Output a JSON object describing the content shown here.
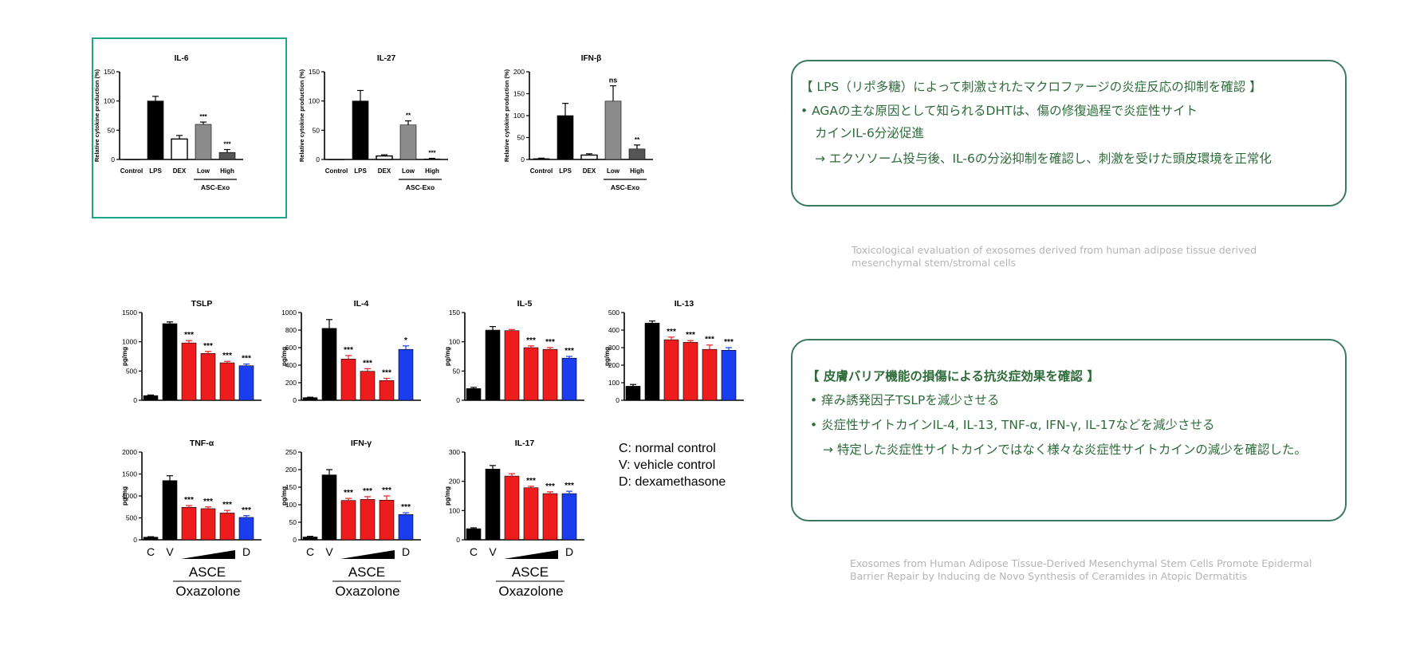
{
  "colors": {
    "black": "#000000",
    "white": "#ffffff",
    "grey": "#8c8c8c",
    "darkgrey": "#555555",
    "red": "#ee1c1c",
    "blue": "#1a3df0",
    "panel_border": "#3b7a5e",
    "panel_text": "#2e6b3a",
    "highlight": "#1ea58a"
  },
  "top_panel": {
    "line1": "【 LPS（リポ多糖）によって刺激されたマクロファージの炎症反応の抑制を確認 】",
    "line2": "•  AGAの主な原因として知られるDHTは、傷の修復過程で炎症性サイト",
    "line3": "カインIL-6分泌促進",
    "line4": "→ エクソソーム投与後、IL-6の分泌抑制を確認し、刺激を受けた頭皮環境を正常化"
  },
  "top_ref": {
    "line1": "Toxicological evaluation of exosomes derived from human adipose tissue derived",
    "line2": "mesenchymal stem/stromal cells"
  },
  "bottom_panel": {
    "line1": "【  皮膚バリア機能の損傷による抗炎症効果を確認 】",
    "line2": "•  痒み誘発因子TSLPを減少させる",
    "line3": "•  炎症性サイトカインIL-4, IL-13, TNF-α, IFN-γ, IL-17などを減少させる",
    "line4": "→ 特定した炎症性サイトカインではなく様々な炎症性サイトカインの減少を確認した。"
  },
  "bottom_ref": {
    "line1": "Exosomes from Human Adipose Tissue-Derived Mesenchymal Stem Cells Promote Epidermal",
    "line2": "Barrier Repair by Inducing de Novo Synthesis of Ceramides in Atopic Dermatitis"
  },
  "legend": {
    "c": "C: normal control",
    "v": "V: vehicle control",
    "d": "D: dexamethasone"
  },
  "chart_data": [
    {
      "type": "bar",
      "title": "IL-6",
      "ylabel": "Relative cytokine production (%)",
      "ylim": [
        0,
        150
      ],
      "yticks": [
        0,
        50,
        100,
        150
      ],
      "categories": [
        "Control",
        "LPS",
        "DEX",
        "Low",
        "High"
      ],
      "values": [
        0,
        100,
        35,
        60,
        12
      ],
      "errors": [
        0,
        8,
        6,
        4,
        5
      ],
      "fills": [
        "black",
        "black",
        "white",
        "grey",
        "darkgrey"
      ],
      "sig": [
        "",
        "",
        "",
        "***",
        "***"
      ],
      "group_label": "ASC-Exo",
      "highlighted": true
    },
    {
      "type": "bar",
      "title": "IL-27",
      "ylabel": "Relative cytokine production (%)",
      "ylim": [
        0,
        150
      ],
      "yticks": [
        0,
        50,
        100,
        150
      ],
      "categories": [
        "Control",
        "LPS",
        "DEX",
        "Low",
        "High"
      ],
      "values": [
        0,
        100,
        6,
        59,
        1
      ],
      "errors": [
        0,
        18,
        2,
        7,
        1
      ],
      "fills": [
        "black",
        "black",
        "white",
        "grey",
        "darkgrey"
      ],
      "sig": [
        "",
        "",
        "",
        "**",
        "***"
      ],
      "group_label": "ASC-Exo"
    },
    {
      "type": "bar",
      "title": "IFN-β",
      "ylabel": "Relative cytokine production (%)",
      "ylim": [
        0,
        200
      ],
      "yticks": [
        0,
        50,
        100,
        150,
        200
      ],
      "categories": [
        "Control",
        "LPS",
        "DEX",
        "Low",
        "High"
      ],
      "values": [
        2,
        100,
        10,
        133,
        24
      ],
      "errors": [
        1,
        28,
        3,
        35,
        9
      ],
      "fills": [
        "black",
        "black",
        "white",
        "grey",
        "darkgrey"
      ],
      "sig": [
        "",
        "",
        "",
        "ns",
        "**"
      ],
      "group_label": "ASC-Exo"
    },
    {
      "type": "bar",
      "title": "TSLP",
      "ylabel": "pg/mg",
      "ylim": [
        0,
        1500
      ],
      "yticks": [
        0,
        500,
        1000,
        1500
      ],
      "values": [
        80,
        1310,
        980,
        800,
        640,
        590
      ],
      "errors": [
        10,
        30,
        40,
        35,
        25,
        30
      ],
      "fills": [
        "black",
        "black",
        "red",
        "red",
        "red",
        "blue"
      ],
      "sig": [
        "",
        "",
        "***",
        "***",
        "***",
        "***"
      ]
    },
    {
      "type": "bar",
      "title": "IL-4",
      "ylabel": "pg/mg",
      "ylim": [
        0,
        1000
      ],
      "yticks": [
        0,
        200,
        400,
        600,
        800,
        1000
      ],
      "values": [
        30,
        820,
        470,
        330,
        225,
        580
      ],
      "errors": [
        5,
        100,
        40,
        30,
        25,
        40
      ],
      "fills": [
        "black",
        "black",
        "red",
        "red",
        "red",
        "blue"
      ],
      "sig": [
        "",
        "",
        "***",
        "***",
        "***",
        "*"
      ]
    },
    {
      "type": "bar",
      "title": "IL-5",
      "ylabel": "pg/mg",
      "ylim": [
        0,
        150
      ],
      "yticks": [
        0,
        50,
        100,
        150
      ],
      "values": [
        20,
        120,
        119,
        90,
        87,
        72
      ],
      "errors": [
        2,
        6,
        2,
        3,
        3,
        3
      ],
      "fills": [
        "black",
        "black",
        "red",
        "red",
        "red",
        "blue"
      ],
      "sig": [
        "",
        "",
        "",
        "***",
        "***",
        "***"
      ]
    },
    {
      "type": "bar",
      "title": "IL-13",
      "ylabel": "pg/mg",
      "ylim": [
        0,
        500
      ],
      "yticks": [
        0,
        100,
        200,
        300,
        400,
        500
      ],
      "values": [
        80,
        440,
        345,
        330,
        290,
        285
      ],
      "errors": [
        10,
        12,
        15,
        10,
        25,
        15
      ],
      "fills": [
        "black",
        "black",
        "red",
        "red",
        "red",
        "blue"
      ],
      "sig": [
        "",
        "",
        "***",
        "***",
        "***",
        "***"
      ]
    },
    {
      "type": "bar",
      "title": "TNF-α",
      "ylabel": "pg/mg",
      "ylim": [
        0,
        2000
      ],
      "yticks": [
        0,
        500,
        1000,
        1500,
        2000
      ],
      "categories": [
        "C",
        "V",
        "",
        "",
        "",
        "D"
      ],
      "values": [
        60,
        1350,
        740,
        710,
        610,
        510
      ],
      "errors": [
        10,
        110,
        40,
        40,
        60,
        40
      ],
      "fills": [
        "black",
        "black",
        "red",
        "red",
        "red",
        "blue"
      ],
      "sig": [
        "",
        "",
        "***",
        "***",
        "***",
        "***"
      ],
      "group_labels": [
        "ASCE",
        "Oxazolone"
      ]
    },
    {
      "type": "bar",
      "title": "IFN-γ",
      "ylabel": "pg/mg",
      "ylim": [
        0,
        250
      ],
      "yticks": [
        0,
        50,
        100,
        150,
        200,
        250
      ],
      "categories": [
        "C",
        "V",
        "",
        "",
        "",
        "D"
      ],
      "values": [
        8,
        185,
        112,
        115,
        113,
        72
      ],
      "errors": [
        2,
        15,
        6,
        8,
        12,
        5
      ],
      "fills": [
        "black",
        "black",
        "red",
        "red",
        "red",
        "blue"
      ],
      "sig": [
        "",
        "",
        "***",
        "***",
        "***",
        "***"
      ],
      "group_labels": [
        "ASCE",
        "Oxazolone"
      ]
    },
    {
      "type": "bar",
      "title": "IL-17",
      "ylabel": "pg/mg",
      "ylim": [
        0,
        300
      ],
      "yticks": [
        0,
        100,
        200,
        300
      ],
      "categories": [
        "C",
        "V",
        "",
        "",
        "",
        "D"
      ],
      "values": [
        38,
        242,
        218,
        178,
        158,
        158
      ],
      "errors": [
        3,
        12,
        8,
        5,
        6,
        8
      ],
      "fills": [
        "black",
        "black",
        "red",
        "red",
        "red",
        "blue"
      ],
      "sig": [
        "",
        "",
        "",
        "***",
        "***",
        "***"
      ],
      "group_labels": [
        "ASCE",
        "Oxazolone"
      ]
    }
  ]
}
